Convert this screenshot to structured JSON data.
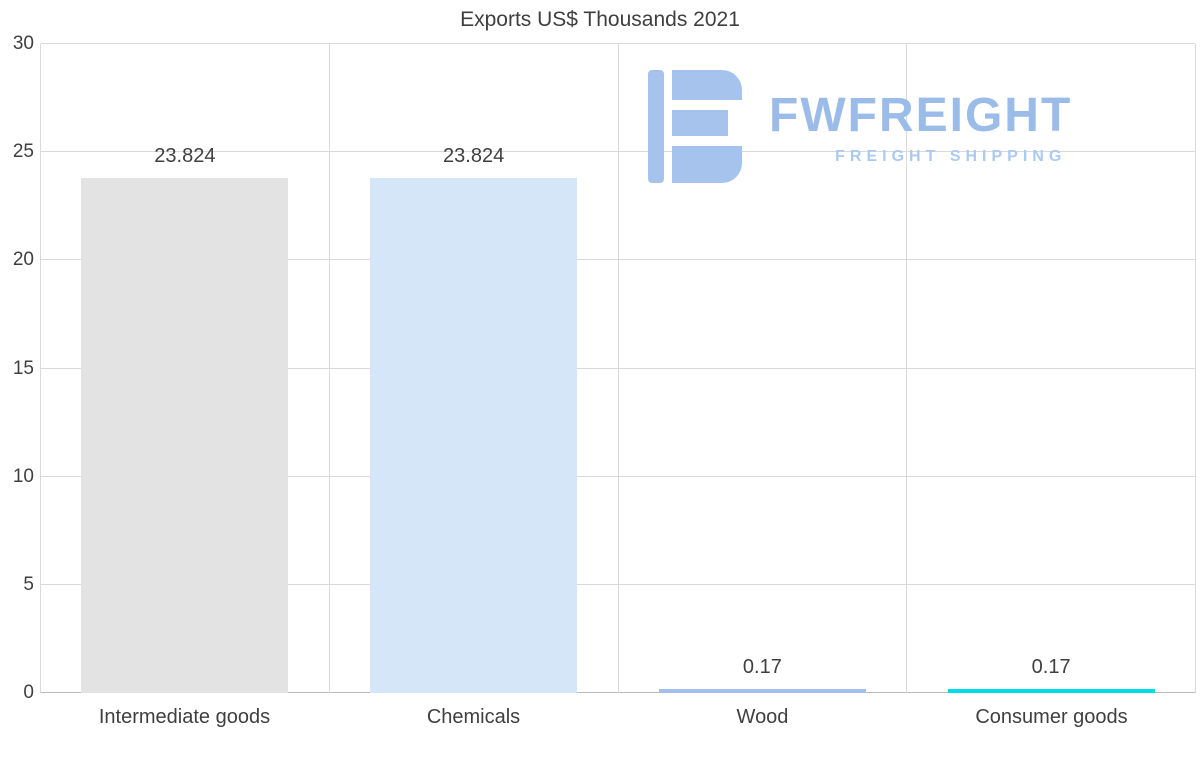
{
  "page": {
    "title": "Exports US$ Thousands 2021"
  },
  "watermark": {
    "brand": "FWFREIGHT",
    "tagline": "FREIGHT SHIPPING",
    "logo_color": "#a6c3ee"
  },
  "chart_data": {
    "type": "bar",
    "title": "Exports US$ Thousands 2021",
    "categories": [
      "Intermediate goods",
      "Chemicals",
      "Wood",
      "Consumer goods"
    ],
    "values": [
      23.824,
      23.824,
      0.17,
      0.17
    ],
    "value_labels": [
      "23.824",
      "23.824",
      "0.17",
      "0.17"
    ],
    "bar_colors": [
      "#e3e3e3",
      "#d5e6f8",
      "#a4bfec",
      "#00dde9"
    ],
    "ylim": [
      0,
      30
    ],
    "yticks": [
      0,
      5,
      10,
      15,
      20,
      25,
      30
    ],
    "grid": true,
    "legend": false,
    "xlabel": "",
    "ylabel": ""
  },
  "colors": {
    "text": "#3f3f3f",
    "gridline": "#d9d9d9",
    "axis_line": "#b9b9b9",
    "background": "#ffffff",
    "watermark_text": "#9bbce9",
    "watermark_tagline": "#accaf0"
  }
}
